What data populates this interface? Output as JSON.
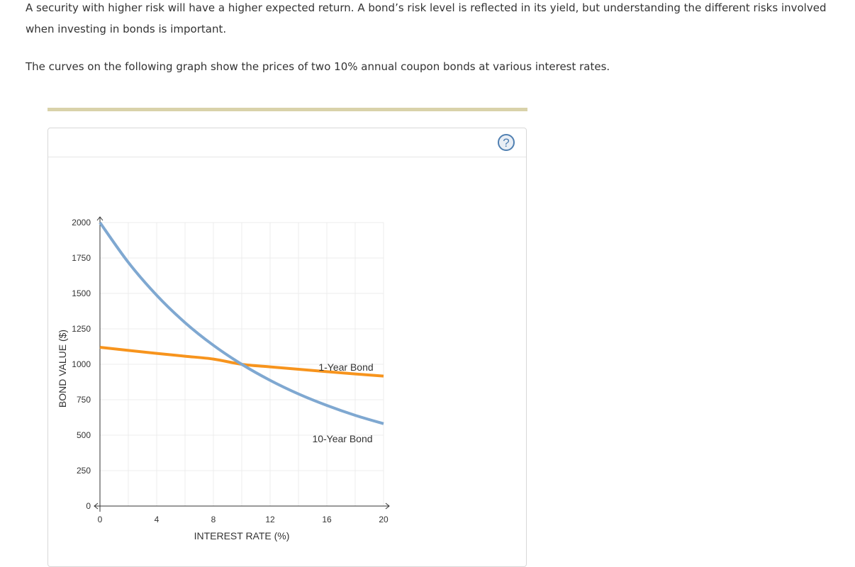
{
  "intro": {
    "paragraph1": "A security with higher risk will have a higher expected return. A bond’s risk level is reflected in its yield, but understanding the different risks involved when investing in bonds is important.",
    "paragraph2": "The curves on the following graph show the prices of two 10% annual coupon bonds at various interest rates."
  },
  "help": {
    "label": "?"
  },
  "colors": {
    "one_year": "#f7941d",
    "ten_year": "#7fa8d1",
    "grid": "#ececec",
    "axis": "#333333",
    "divider": "#d9d2aa"
  },
  "chart_data": {
    "type": "line",
    "xlabel": "INTEREST RATE (%)",
    "ylabel": "BOND VALUE ($)",
    "xlim": [
      0,
      20
    ],
    "ylim": [
      0,
      2000
    ],
    "xticks": [
      0,
      4,
      8,
      12,
      16,
      20
    ],
    "yticks": [
      0,
      250,
      500,
      750,
      1000,
      1250,
      1500,
      1750,
      2000
    ],
    "grid": true,
    "series": [
      {
        "name": "1-Year Bond",
        "color": "#f7941d",
        "x": [
          0,
          2,
          4,
          6,
          8,
          10,
          12,
          14,
          16,
          18,
          20
        ],
        "y": [
          1120,
          1098,
          1077,
          1057,
          1037,
          1000,
          982,
          965,
          948,
          932,
          917
        ]
      },
      {
        "name": "10-Year Bond",
        "color": "#7fa8d1",
        "x": [
          0,
          2,
          4,
          6,
          8,
          10,
          12,
          14,
          16,
          18,
          20
        ],
        "y": [
          2000,
          1719,
          1487,
          1294,
          1134,
          1000,
          887,
          791,
          710,
          640,
          581
        ]
      }
    ]
  }
}
